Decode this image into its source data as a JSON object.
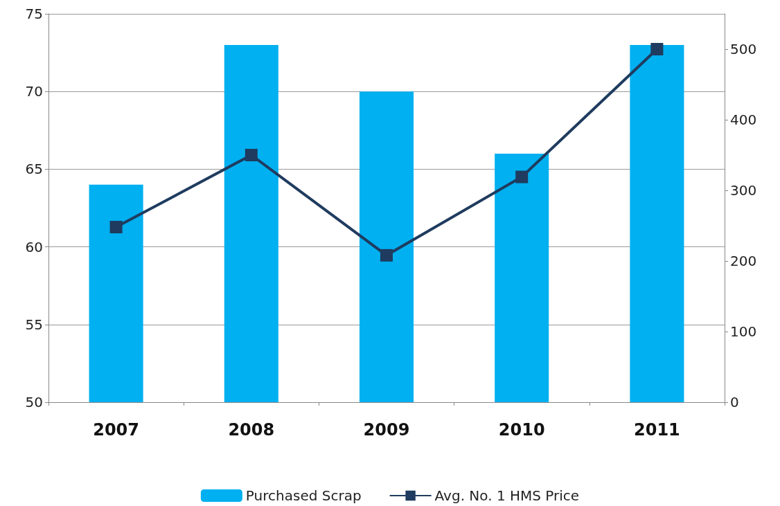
{
  "chart_data": {
    "type": "bar",
    "categories": [
      "2007",
      "2008",
      "2009",
      "2010",
      "2011"
    ],
    "series": [
      {
        "name": "Purchased Scrap",
        "color": "#00b0f0",
        "values": [
          64,
          73,
          70,
          66,
          73
        ]
      },
      {
        "name": "Avg. No. 1 HMS Price",
        "type": "line",
        "axis": "y2",
        "color": "#1f3b5f",
        "marker": "square",
        "values": [
          248,
          350,
          208,
          319,
          500
        ]
      }
    ],
    "ylim": [
      50,
      75
    ],
    "yticks": [
      50,
      55,
      60,
      65,
      70,
      75
    ],
    "y2lim": [
      0,
      550
    ],
    "y2ticks": [
      0,
      100,
      200,
      300,
      400,
      500
    ],
    "grid": "y",
    "legend": "bottom"
  }
}
